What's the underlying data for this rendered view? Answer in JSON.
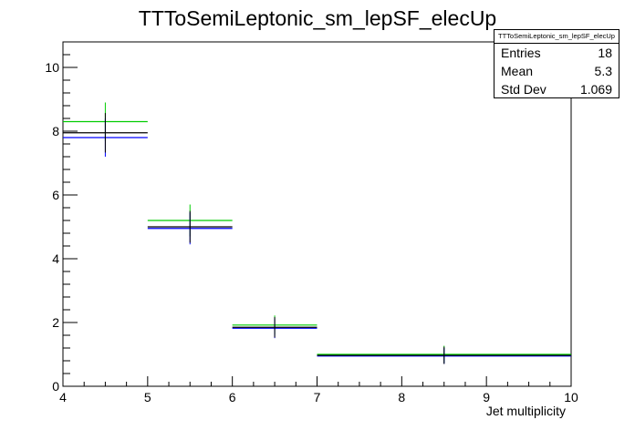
{
  "chart_data": {
    "type": "histogram",
    "title": "TTToSemiLeptonic_sm_lepSF_elecUp",
    "xlabel": "Jet multiplicity",
    "ylabel": "",
    "xlim": [
      4,
      10
    ],
    "ylim": [
      0,
      10.8
    ],
    "x_ticks": [
      "4",
      "5",
      "6",
      "7",
      "8",
      "9",
      "10"
    ],
    "y_ticks": [
      "0",
      "2",
      "4",
      "6",
      "8",
      "10"
    ],
    "grid": false,
    "series": [
      {
        "color": "#000000",
        "bins": [
          {
            "xlow": 4,
            "xhigh": 5,
            "value": 7.95,
            "error": 0.62
          },
          {
            "xlow": 5,
            "xhigh": 6,
            "value": 5.0,
            "error": 0.5
          },
          {
            "xlow": 6,
            "xhigh": 7,
            "value": 1.85,
            "error": 0.32
          },
          {
            "xlow": 7,
            "xhigh": 10,
            "value": 0.97,
            "error": 0.27
          }
        ]
      },
      {
        "color": "#0000ff",
        "bins": [
          {
            "xlow": 4,
            "xhigh": 5,
            "value": 7.8,
            "error": 0.6
          },
          {
            "xlow": 5,
            "xhigh": 6,
            "value": 4.95,
            "error": 0.5
          },
          {
            "xlow": 6,
            "xhigh": 7,
            "value": 1.82,
            "error": 0.31
          },
          {
            "xlow": 7,
            "xhigh": 10,
            "value": 0.95,
            "error": 0.25
          }
        ]
      },
      {
        "color": "#00cc00",
        "bins": [
          {
            "xlow": 4,
            "xhigh": 5,
            "value": 8.3,
            "error": 0.6
          },
          {
            "xlow": 5,
            "xhigh": 6,
            "value": 5.2,
            "error": 0.5
          },
          {
            "xlow": 6,
            "xhigh": 7,
            "value": 1.92,
            "error": 0.3
          },
          {
            "xlow": 7,
            "xhigh": 10,
            "value": 1.0,
            "error": 0.27
          }
        ]
      }
    ],
    "stats": {
      "title": "TTToSemiLeptonic_sm_lepSF_elecUp",
      "entries_label": "Entries",
      "entries_value": "18",
      "mean_label": "Mean",
      "mean_value": "5.3",
      "stddev_label": "Std Dev",
      "stddev_value": "1.069"
    }
  }
}
